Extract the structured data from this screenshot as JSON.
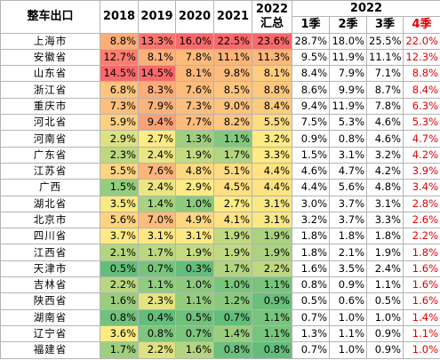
{
  "header": {
    "title": "整车出口",
    "years": [
      "2018",
      "2019",
      "2020",
      "2021"
    ],
    "total": [
      "2022",
      "汇总"
    ],
    "group": "2022",
    "quarters": [
      "1季",
      "2季",
      "3季",
      "4季"
    ]
  },
  "rows": [
    {
      "name": "上海市",
      "cells": [
        "8.8%",
        "13.3%",
        "16.0%",
        "22.5%",
        "23.6%",
        "28.7%",
        "18.0%",
        "25.5%",
        "22.0%"
      ]
    },
    {
      "name": "安徽省",
      "cells": [
        "12.7%",
        "8.1%",
        "7.8%",
        "11.1%",
        "11.3%",
        "9.5%",
        "11.9%",
        "11.1%",
        "12.3%"
      ]
    },
    {
      "name": "山东省",
      "cells": [
        "14.5%",
        "14.5%",
        "8.1%",
        "9.8%",
        "8.1%",
        "8.4%",
        "7.9%",
        "7.1%",
        "8.8%"
      ]
    },
    {
      "name": "浙江省",
      "cells": [
        "6.8%",
        "8.3%",
        "7.6%",
        "8.5%",
        "8.8%",
        "8.6%",
        "9.9%",
        "8.7%",
        "8.4%"
      ]
    },
    {
      "name": "重庆市",
      "cells": [
        "7.3%",
        "7.9%",
        "7.3%",
        "9.0%",
        "8.4%",
        "9.4%",
        "11.9%",
        "7.8%",
        "6.3%"
      ]
    },
    {
      "name": "河北省",
      "cells": [
        "5.9%",
        "9.4%",
        "7.7%",
        "8.2%",
        "5.5%",
        "7.5%",
        "5.3%",
        "4.6%",
        "5.3%"
      ]
    },
    {
      "name": "河南省",
      "cells": [
        "2.9%",
        "2.7%",
        "1.3%",
        "1.1%",
        "3.2%",
        "0.9%",
        "0.8%",
        "4.6%",
        "4.7%"
      ]
    },
    {
      "name": "广东省",
      "cells": [
        "2.3%",
        "2.4%",
        "1.9%",
        "1.7%",
        "3.3%",
        "1.5%",
        "3.1%",
        "3.2%",
        "4.2%"
      ]
    },
    {
      "name": "江苏省",
      "cells": [
        "5.5%",
        "7.6%",
        "4.8%",
        "5.1%",
        "4.4%",
        "4.6%",
        "4.7%",
        "4.2%",
        "3.9%"
      ]
    },
    {
      "name": "广西",
      "cells": [
        "1.5%",
        "2.4%",
        "2.9%",
        "4.5%",
        "4.4%",
        "4.4%",
        "5.6%",
        "4.8%",
        "3.4%"
      ]
    },
    {
      "name": "湖北省",
      "cells": [
        "3.5%",
        "1.4%",
        "1.0%",
        "2.7%",
        "3.1%",
        "3.0%",
        "3.7%",
        "3.1%",
        "2.8%"
      ]
    },
    {
      "name": "北京市",
      "cells": [
        "5.6%",
        "7.0%",
        "4.9%",
        "4.1%",
        "3.1%",
        "3.2%",
        "3.7%",
        "3.3%",
        "2.6%"
      ]
    },
    {
      "name": "四川省",
      "cells": [
        "3.7%",
        "3.1%",
        "3.1%",
        "1.9%",
        "1.9%",
        "1.8%",
        "1.8%",
        "1.8%",
        "2.2%"
      ]
    },
    {
      "name": "江西省",
      "cells": [
        "2.1%",
        "1.7%",
        "1.9%",
        "1.9%",
        "1.9%",
        "1.8%",
        "2.1%",
        "1.9%",
        "1.8%"
      ]
    },
    {
      "name": "天津市",
      "cells": [
        "0.5%",
        "0.7%",
        "0.3%",
        "1.7%",
        "2.2%",
        "1.6%",
        "3.5%",
        "2.4%",
        "1.6%"
      ]
    },
    {
      "name": "吉林省",
      "cells": [
        "2.2%",
        "1.1%",
        "1.0%",
        "1.0%",
        "1.1%",
        "0.8%",
        "0.9%",
        "1.1%",
        "1.6%"
      ]
    },
    {
      "name": "陕西省",
      "cells": [
        "1.6%",
        "2.3%",
        "1.1%",
        "1.2%",
        "0.9%",
        "0.5%",
        "0.6%",
        "0.5%",
        "1.6%"
      ]
    },
    {
      "name": "湖南省",
      "cells": [
        "0.8%",
        "0.4%",
        "0.5%",
        "0.7%",
        "1.1%",
        "0.7%",
        "1.0%",
        "1.0%",
        "1.4%"
      ]
    },
    {
      "name": "辽宁省",
      "cells": [
        "3.6%",
        "0.8%",
        "0.7%",
        "1.4%",
        "1.1%",
        "1.3%",
        "1.1%",
        "0.9%",
        "1.1%"
      ]
    },
    {
      "name": "福建省",
      "cells": [
        "1.7%",
        "2.2%",
        "1.6%",
        "0.8%",
        "0.8%",
        "0.7%",
        "1.0%",
        "0.9%",
        "1.0%"
      ]
    }
  ]
}
